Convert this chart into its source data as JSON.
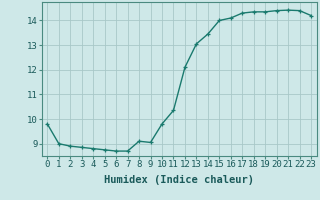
{
  "x": [
    0,
    1,
    2,
    3,
    4,
    5,
    6,
    7,
    8,
    9,
    10,
    11,
    12,
    13,
    14,
    15,
    16,
    17,
    18,
    19,
    20,
    21,
    22,
    23
  ],
  "y": [
    9.8,
    9.0,
    8.9,
    8.85,
    8.8,
    8.75,
    8.7,
    8.7,
    9.1,
    9.05,
    9.8,
    10.35,
    12.1,
    13.05,
    13.45,
    14.0,
    14.1,
    14.3,
    14.35,
    14.35,
    14.4,
    14.42,
    14.4,
    14.2
  ],
  "xlabel": "Humidex (Indice chaleur)",
  "ylim": [
    8.5,
    14.75
  ],
  "xlim": [
    -0.5,
    23.5
  ],
  "yticks": [
    9,
    10,
    11,
    12,
    13,
    14
  ],
  "xticks": [
    0,
    1,
    2,
    3,
    4,
    5,
    6,
    7,
    8,
    9,
    10,
    11,
    12,
    13,
    14,
    15,
    16,
    17,
    18,
    19,
    20,
    21,
    22,
    23
  ],
  "line_color": "#1a7a6e",
  "marker": "+",
  "bg_color": "#cee8e8",
  "grid_color": "#a8c8c8",
  "tick_label_fontsize": 6.5,
  "xlabel_fontsize": 7.5
}
